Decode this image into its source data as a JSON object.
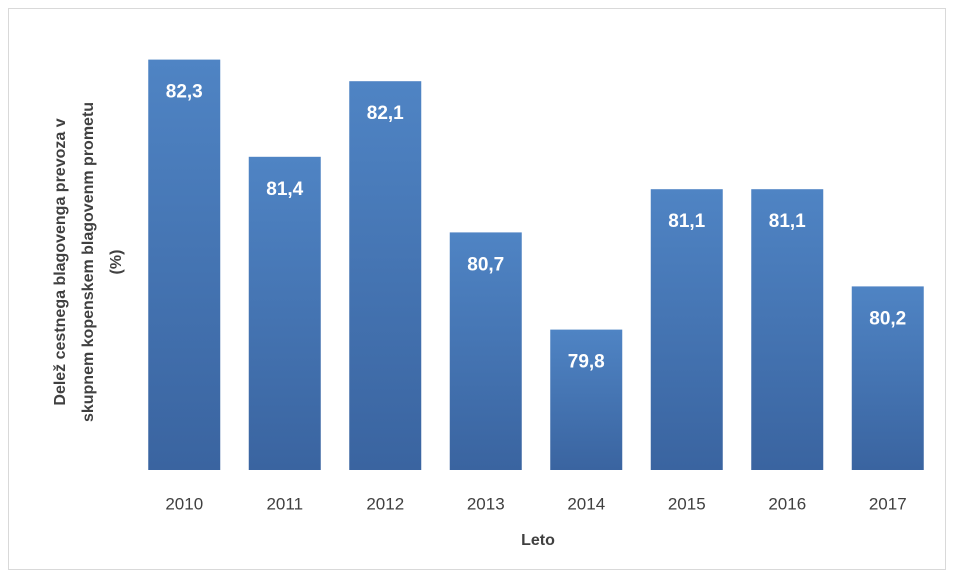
{
  "chart_data": {
    "type": "bar",
    "categories": [
      "2010",
      "2011",
      "2012",
      "2013",
      "2014",
      "2015",
      "2016",
      "2017"
    ],
    "values": [
      82.3,
      81.4,
      82.1,
      80.7,
      79.8,
      81.1,
      81.1,
      80.2
    ],
    "value_labels": [
      "82,3",
      "81,4",
      "82,1",
      "80,7",
      "79,8",
      "81,1",
      "81,1",
      "80,2"
    ],
    "color": "#4a7ab8",
    "ylim": [
      78.5,
      82.5
    ],
    "xlabel": "Leto",
    "ylabel": [
      "Delež cestnega blagovenga prevoza v",
      "skupnem kopenskem blagovenm prometu",
      "(%)"
    ]
  }
}
